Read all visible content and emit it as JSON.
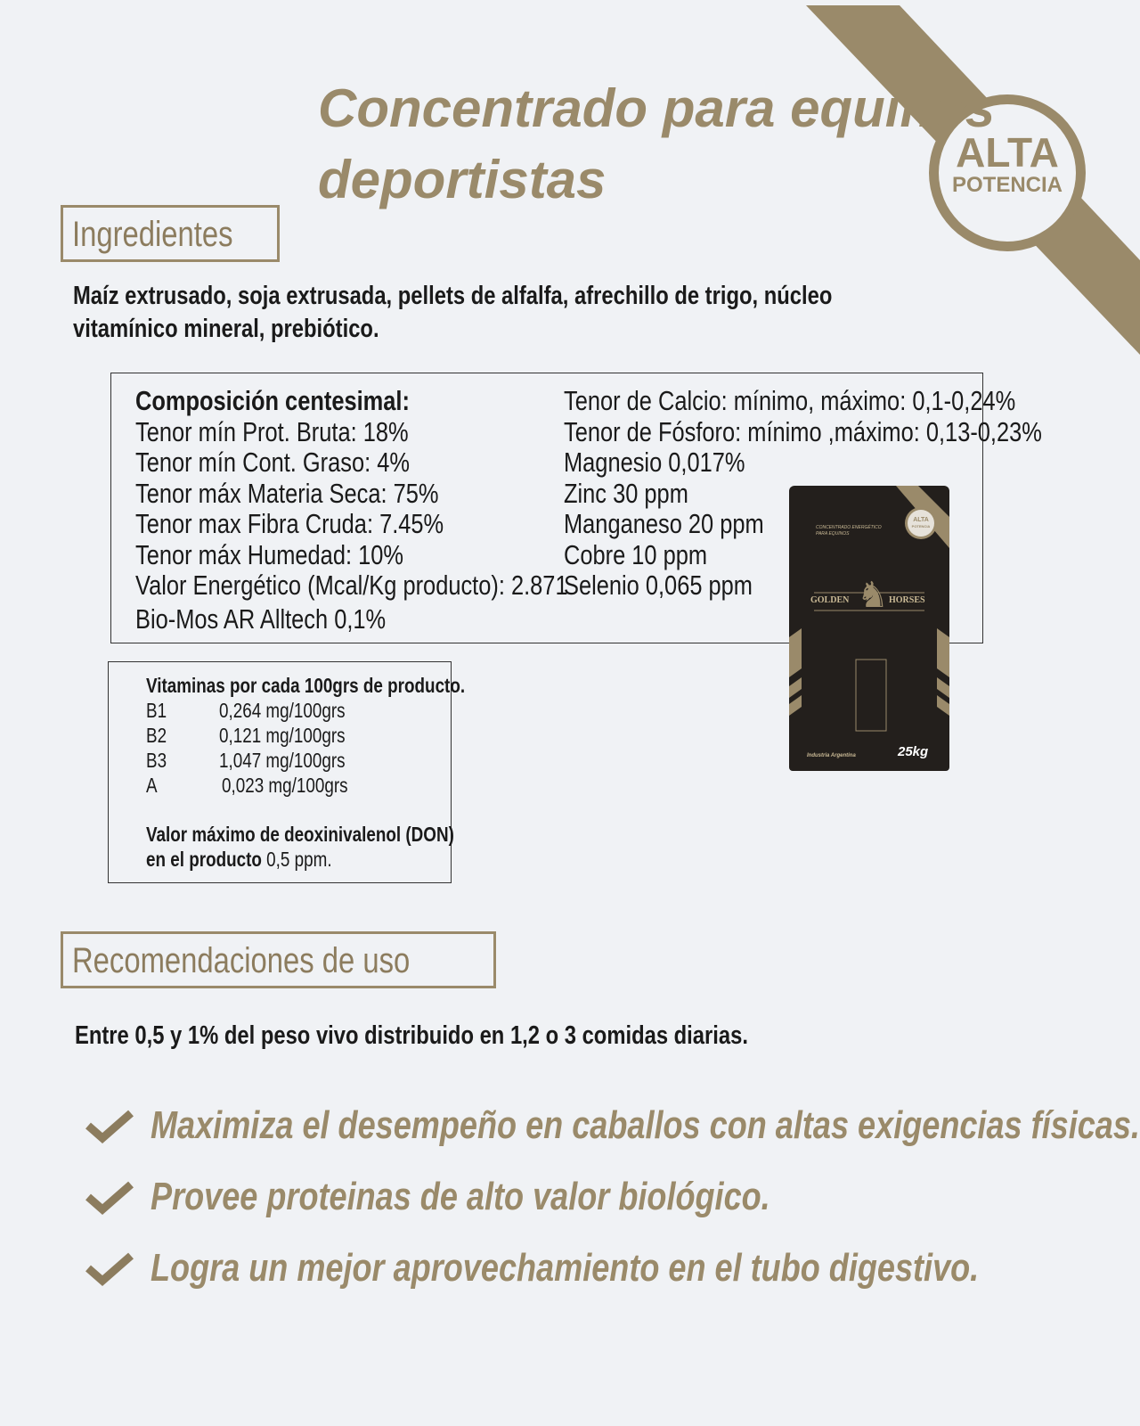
{
  "header": {
    "title_line1": "Concentrado para equinos",
    "title_line2": "deportistas",
    "badge_line1": "ALTA",
    "badge_line2": "POTENCIA"
  },
  "colors": {
    "accent": "#9a8a6a",
    "background": "#f0f2f5",
    "bag": "#231f1c"
  },
  "ingredients": {
    "heading": "Ingredientes",
    "text_line1": "Maíz extrusado, soja extrusada, pellets de alfalfa, afrechillo de trigo, núcleo",
    "text_line2": "vitamínico mineral, prebiótico."
  },
  "composition": {
    "title": "Composición centesimal:",
    "left": [
      "Tenor mín Prot. Bruta: 18%",
      "Tenor mín Cont. Graso: 4%",
      "Tenor máx Materia Seca: 75%",
      "Tenor max Fibra Cruda: 7.45%",
      "Tenor máx Humedad: 10%",
      "Valor Energético (Mcal/Kg producto): 2.871",
      "Bio-Mos AR Alltech 0,1%"
    ],
    "right": [
      "Tenor de Calcio: mínimo, máximo:   0,1-0,24%",
      "Tenor de Fósforo: mínimo ,máximo: 0,13-0,23%",
      "Magnesio 0,017%",
      "Zinc 30 ppm",
      "Manganeso 20 ppm",
      "Cobre  10 ppm",
      "Selenio 0,065 ppm"
    ]
  },
  "vitamins": {
    "title": "Vitaminas por cada 100grs de producto.",
    "rows": [
      {
        "name": "B1",
        "value": "0,264 mg/100grs"
      },
      {
        "name": "B2",
        "value": "0,121 mg/100grs"
      },
      {
        "name": "B3",
        "value": "1,047 mg/100grs"
      },
      {
        "name": "A",
        "value": "0,023 mg/100grs"
      }
    ],
    "don_line1": "Valor máximo de deoxinivalenol (DON)",
    "don_line2_bold": "en el producto",
    "don_line2_value": "0,5 ppm."
  },
  "product_bag": {
    "subtitle_line1": "CONCENTRADO ENERGÉTICO",
    "subtitle_line2": "PARA EQUINOS",
    "brand_left": "GOLDEN",
    "brand_right": "HORSES",
    "badge_line1": "ALTA",
    "badge_line2": "POTENCIA",
    "origin": "Industria Argentina",
    "weight": "25kg"
  },
  "usage": {
    "heading": "Recomendaciones de uso",
    "text": "Entre 0,5 y 1% del peso vivo distribuido en 1,2 o 3 comidas diarias."
  },
  "benefits": [
    {
      "icon": "check-icon",
      "text": "Maximiza el desempeño en caballos con altas exigencias físicas."
    },
    {
      "icon": "check-icon",
      "text": "Provee proteinas de alto valor biológico."
    },
    {
      "icon": "check-icon",
      "text": "Logra un mejor aprovechamiento en el tubo digestivo."
    }
  ]
}
